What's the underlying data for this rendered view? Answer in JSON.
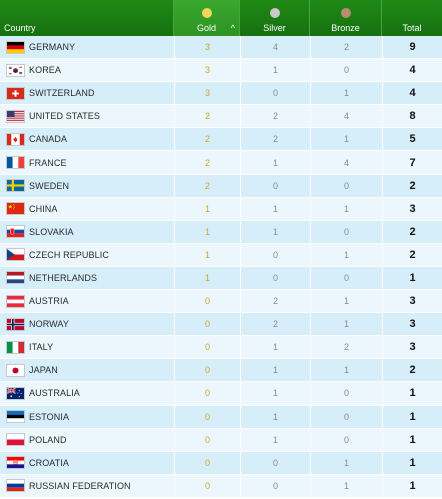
{
  "header": {
    "country_label": "Country",
    "gold_label": "Gold",
    "silver_label": "Silver",
    "bronze_label": "Bronze",
    "total_label": "Total",
    "sort_arrow": "^",
    "gold_color": "#f3d65a",
    "silver_color": "#c9c9c9",
    "bronze_color": "#b88c74"
  },
  "rows": [
    {
      "country": "GERMANY",
      "flag": "germany",
      "gold": "3",
      "silver": "4",
      "bronze": "2",
      "total": "9"
    },
    {
      "country": "KOREA",
      "flag": "korea",
      "gold": "3",
      "silver": "1",
      "bronze": "0",
      "total": "4"
    },
    {
      "country": "SWITZERLAND",
      "flag": "switzerland",
      "gold": "3",
      "silver": "0",
      "bronze": "1",
      "total": "4"
    },
    {
      "country": "UNITED STATES",
      "flag": "united-states",
      "gold": "2",
      "silver": "2",
      "bronze": "4",
      "total": "8"
    },
    {
      "country": "CANADA",
      "flag": "canada",
      "gold": "2",
      "silver": "2",
      "bronze": "1",
      "total": "5"
    },
    {
      "country": "FRANCE",
      "flag": "france",
      "gold": "2",
      "silver": "1",
      "bronze": "4",
      "total": "7"
    },
    {
      "country": "SWEDEN",
      "flag": "sweden",
      "gold": "2",
      "silver": "0",
      "bronze": "0",
      "total": "2"
    },
    {
      "country": "CHINA",
      "flag": "china",
      "gold": "1",
      "silver": "1",
      "bronze": "1",
      "total": "3"
    },
    {
      "country": "SLOVAKIA",
      "flag": "slovakia",
      "gold": "1",
      "silver": "1",
      "bronze": "0",
      "total": "2"
    },
    {
      "country": "CZECH REPUBLIC",
      "flag": "czech-republic",
      "gold": "1",
      "silver": "0",
      "bronze": "1",
      "total": "2"
    },
    {
      "country": "NETHERLANDS",
      "flag": "netherlands",
      "gold": "1",
      "silver": "0",
      "bronze": "0",
      "total": "1"
    },
    {
      "country": "AUSTRIA",
      "flag": "austria",
      "gold": "0",
      "silver": "2",
      "bronze": "1",
      "total": "3"
    },
    {
      "country": "NORWAY",
      "flag": "norway",
      "gold": "0",
      "silver": "2",
      "bronze": "1",
      "total": "3"
    },
    {
      "country": "ITALY",
      "flag": "italy",
      "gold": "0",
      "silver": "1",
      "bronze": "2",
      "total": "3"
    },
    {
      "country": "JAPAN",
      "flag": "japan",
      "gold": "0",
      "silver": "1",
      "bronze": "1",
      "total": "2"
    },
    {
      "country": "AUSTRALIA",
      "flag": "australia",
      "gold": "0",
      "silver": "1",
      "bronze": "0",
      "total": "1"
    },
    {
      "country": "ESTONIA",
      "flag": "estonia",
      "gold": "0",
      "silver": "1",
      "bronze": "0",
      "total": "1"
    },
    {
      "country": "POLAND",
      "flag": "poland",
      "gold": "0",
      "silver": "1",
      "bronze": "0",
      "total": "1"
    },
    {
      "country": "CROATIA",
      "flag": "croatia",
      "gold": "0",
      "silver": "0",
      "bronze": "1",
      "total": "1"
    },
    {
      "country": "RUSSIAN FEDERATION",
      "flag": "russia",
      "gold": "0",
      "silver": "0",
      "bronze": "1",
      "total": "1"
    }
  ]
}
